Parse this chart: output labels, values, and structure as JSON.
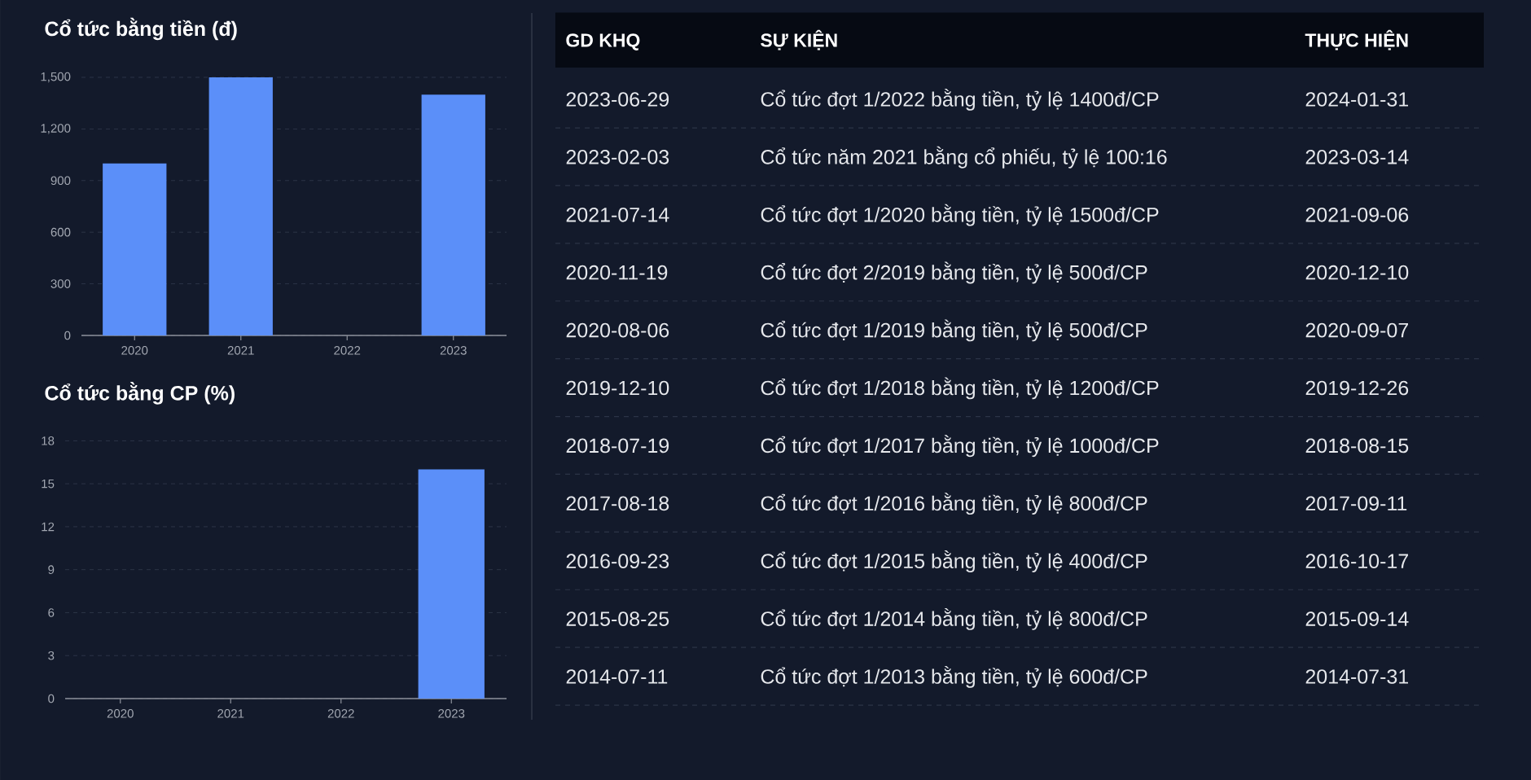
{
  "chart_data": [
    {
      "type": "bar",
      "title": "Cổ tức bằng tiền (đ)",
      "categories": [
        "2020",
        "2021",
        "2022",
        "2023"
      ],
      "values": [
        1000,
        1500,
        null,
        1400
      ],
      "color": "#5b8ff9",
      "ylim": [
        0,
        1500
      ],
      "yticks": [
        0,
        300,
        600,
        900,
        {
          "value": 1200,
          "label": "1,200"
        },
        {
          "value": 1500,
          "label": "1,500"
        }
      ],
      "grid": "y"
    },
    {
      "type": "bar",
      "title": "Cổ tức bằng CP (%)",
      "categories": [
        "2020",
        "2021",
        "2022",
        "2023"
      ],
      "values": [
        null,
        null,
        null,
        16
      ],
      "color": "#5b8ff9",
      "ylim": [
        0,
        18
      ],
      "yticks": [
        0,
        3,
        6,
        9,
        12,
        15,
        18
      ],
      "grid": "y"
    },
    {
      "type": "other",
      "categories": [
        "GD KHQ",
        "SỰ KIỆN",
        "THỰC HIỆN"
      ],
      "annotations": [
        "2023-06-29",
        "Cổ tức đợt 1/2022 bằng tiền, tỷ lệ 1400đ/CP",
        "2024-01-31",
        "2023-02-03",
        "Cổ tức năm 2021 bằng cổ phiếu, tỷ lệ 100:16",
        "2023-03-14",
        "2021-07-14",
        "Cổ tức đợt 1/2020 bằng tiền, tỷ lệ 1500đ/CP",
        "2021-09-06",
        "2020-11-19",
        "Cổ tức đợt 2/2019 bằng tiền, tỷ lệ 500đ/CP",
        "2020-12-10",
        "2020-08-06",
        "Cổ tức đợt 1/2019 bằng tiền, tỷ lệ 500đ/CP",
        "2020-09-07",
        "2019-12-10",
        "Cổ tức đợt 1/2018 bằng tiền, tỷ lệ 1200đ/CP",
        "2019-12-26",
        "2018-07-19",
        "Cổ tức đợt 1/2017 bằng tiền, tỷ lệ 1000đ/CP",
        "2018-08-15",
        "2017-08-18",
        "Cổ tức đợt 1/2016 bằng tiền, tỷ lệ 800đ/CP",
        "2017-09-11",
        "2016-09-23",
        "Cổ tức đợt 1/2015 bằng tiền, tỷ lệ 400đ/CP",
        "2016-10-17",
        "2015-08-25",
        "Cổ tức đợt 1/2014 bằng tiền, tỷ lệ 800đ/CP",
        "2015-09-14",
        "2014-07-11",
        "Cổ tức đợt 1/2013 bằng tiền, tỷ lệ 600đ/CP",
        "2014-07-31"
      ]
    }
  ]
}
